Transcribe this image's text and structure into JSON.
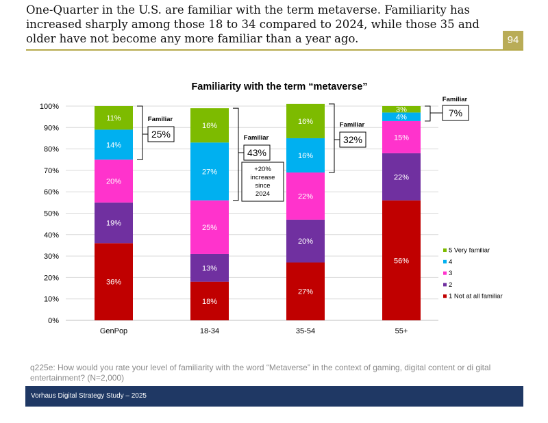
{
  "page": {
    "headline": "One-Quarter in the U.S. are familiar with the term metaverse. Familiarity has increased sharply among those 18 to 34 compared to 2024, while those 35 and older have not become any more familiar than a year ago.",
    "page_number": "94",
    "note": "q225e: How would you rate your level of familiarity with the word “Metaverse” in the context of gaming, digital content or di gital entertainment? (N=2,000)",
    "footer": "Vorhaus Digital Strategy Study – 2025"
  },
  "chart_data": {
    "type": "bar",
    "stacked": true,
    "title": "Familiarity with the term “metaverse”",
    "categories": [
      "GenPop",
      "18-34",
      "35-54",
      "55+"
    ],
    "ylim": [
      0,
      100
    ],
    "yticks": [
      "0%",
      "10%",
      "20%",
      "30%",
      "40%",
      "50%",
      "60%",
      "70%",
      "80%",
      "90%",
      "100%"
    ],
    "series": [
      {
        "name": "1 Not at all familiar",
        "color": "#c00000",
        "values": [
          36,
          18,
          27,
          56
        ],
        "labels": [
          "36%",
          "18%",
          "27%",
          "56%"
        ]
      },
      {
        "name": "2",
        "color": "#7030a0",
        "values": [
          19,
          13,
          20,
          22
        ],
        "labels": [
          "19%",
          "13%",
          "20%",
          "22%"
        ]
      },
      {
        "name": "3",
        "color": "#ff33cc",
        "values": [
          20,
          25,
          22,
          15
        ],
        "labels": [
          "20%",
          "25%",
          "22%",
          "15%"
        ]
      },
      {
        "name": "4",
        "color": "#00b0f0",
        "values": [
          14,
          27,
          16,
          4
        ],
        "labels": [
          "14%",
          "27%",
          "16%",
          "4%"
        ]
      },
      {
        "name": "5 Very familiar",
        "color": "#7dbb00",
        "values": [
          11,
          16,
          16,
          3
        ],
        "labels": [
          "11%",
          "16%",
          "16%",
          "3%"
        ]
      }
    ],
    "legend_order": [
      "5 Very familiar",
      "4",
      "3",
      "2",
      "1 Not at all familiar"
    ],
    "legend_position": "right",
    "annotations": [
      {
        "category": "GenPop",
        "label": "Familiar",
        "value": "25%",
        "note": ""
      },
      {
        "category": "18-34",
        "label": "Familiar",
        "value": "43%",
        "note": "+20% increase since 2024"
      },
      {
        "category": "35-54",
        "label": "Familiar",
        "value": "32%",
        "note": ""
      },
      {
        "category": "55+",
        "label": "Familiar",
        "value": "7%",
        "note": ""
      }
    ]
  }
}
